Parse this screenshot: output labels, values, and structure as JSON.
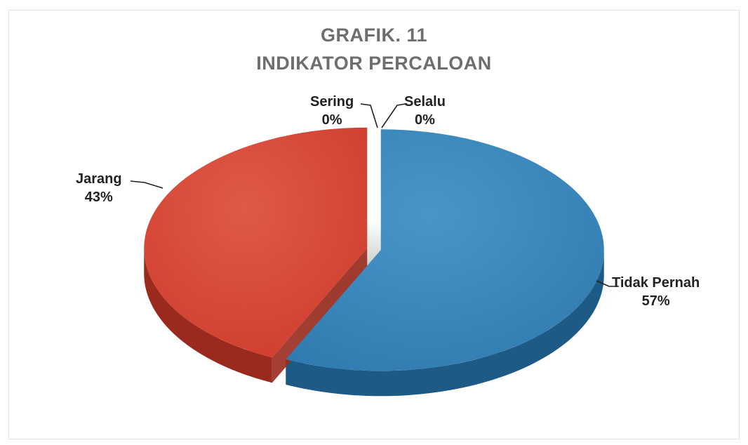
{
  "title": {
    "line1": "GRAFIK. 11",
    "line2": "INDIKATOR PERCALOAN"
  },
  "colors": {
    "tidak_pernah": "#2f7bb0",
    "jarang": "#cf3c2c",
    "title": "#6e6e6e"
  },
  "chart_data": {
    "type": "pie",
    "title": "GRAFIK. 11 INDIKATOR PERCALOAN",
    "style": "3d-exploded",
    "categories": [
      "Tidak Pernah",
      "Jarang",
      "Sering",
      "Selalu"
    ],
    "values": [
      57,
      43,
      0,
      0
    ],
    "labels": [
      {
        "name": "Tidak Pernah",
        "pct": "57%"
      },
      {
        "name": "Jarang",
        "pct": "43%"
      },
      {
        "name": "Sering",
        "pct": "0%"
      },
      {
        "name": "Selalu",
        "pct": "0%"
      }
    ],
    "legend": "none"
  }
}
